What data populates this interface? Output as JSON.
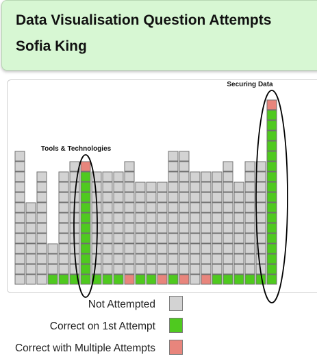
{
  "header": {
    "title": "Data Visualisation Question Attempts",
    "student_name": "Sofia King"
  },
  "colors": {
    "not_attempted": "#d3d3d3",
    "correct_first": "#4fc91f",
    "correct_multiple": "#e8857c",
    "square_border": "#707070",
    "header_bg": "#d7f7d3"
  },
  "chart_data": {
    "type": "waffle-columns",
    "title": "",
    "columns": [
      {
        "total": 13,
        "correct_first": 0,
        "correct_multiple": 0
      },
      {
        "total": 8,
        "correct_first": 0,
        "correct_multiple": 0
      },
      {
        "total": 11,
        "correct_first": 0,
        "correct_multiple": 0
      },
      {
        "total": 4,
        "correct_first": 1,
        "correct_multiple": 0
      },
      {
        "total": 11,
        "correct_first": 1,
        "correct_multiple": 0
      },
      {
        "total": 12,
        "correct_first": 1,
        "correct_multiple": 0
      },
      {
        "total": 12,
        "correct_first": 11,
        "correct_multiple": 1
      },
      {
        "total": 11,
        "correct_first": 1,
        "correct_multiple": 0
      },
      {
        "total": 11,
        "correct_first": 1,
        "correct_multiple": 0
      },
      {
        "total": 11,
        "correct_first": 1,
        "correct_multiple": 0
      },
      {
        "total": 12,
        "correct_first": 0,
        "correct_multiple": 1
      },
      {
        "total": 10,
        "correct_first": 1,
        "correct_multiple": 0
      },
      {
        "total": 10,
        "correct_first": 1,
        "correct_multiple": 0
      },
      {
        "total": 10,
        "correct_first": 0,
        "correct_multiple": 1
      },
      {
        "total": 13,
        "correct_first": 1,
        "correct_multiple": 0
      },
      {
        "total": 13,
        "correct_first": 0,
        "correct_multiple": 1
      },
      {
        "total": 11,
        "correct_first": 0,
        "correct_multiple": 0
      },
      {
        "total": 11,
        "correct_first": 0,
        "correct_multiple": 1
      },
      {
        "total": 11,
        "correct_first": 1,
        "correct_multiple": 0
      },
      {
        "total": 12,
        "correct_first": 1,
        "correct_multiple": 0
      },
      {
        "total": 10,
        "correct_first": 1,
        "correct_multiple": 0
      },
      {
        "total": 12,
        "correct_first": 1,
        "correct_multiple": 0
      },
      {
        "total": 12,
        "correct_first": 1,
        "correct_multiple": 0
      },
      {
        "total": 18,
        "correct_first": 17,
        "correct_multiple": 1
      }
    ],
    "annotations": [
      {
        "label": "Tools & Technologies",
        "column": 6
      },
      {
        "label": "Securing Data",
        "column": 23
      }
    ],
    "legend": [
      {
        "label": "Not Attempted",
        "status": "not_attempted"
      },
      {
        "label": "Correct on 1st Attempt",
        "status": "correct_first"
      },
      {
        "label": "Correct with Multiple Attempts",
        "status": "correct_multiple"
      }
    ]
  }
}
